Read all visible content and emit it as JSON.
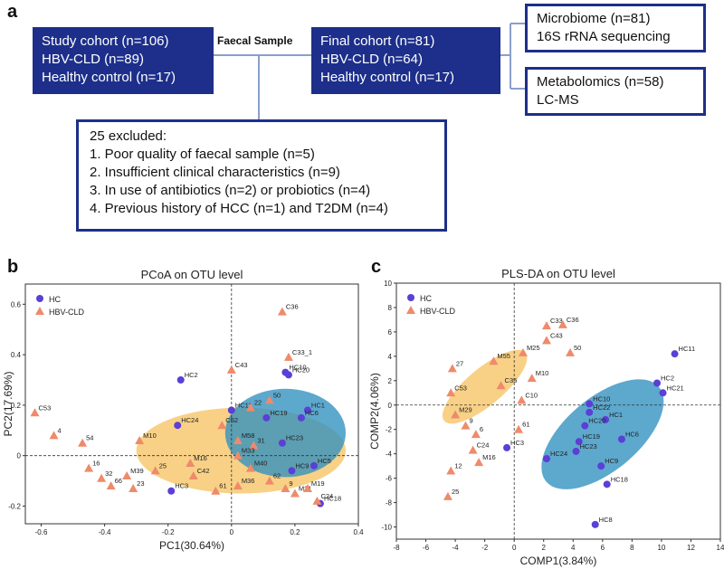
{
  "panels": {
    "a": "a",
    "b": "b",
    "c": "c"
  },
  "flow": {
    "study": {
      "line1": "Study cohort (n=106)",
      "line2": "HBV-CLD (n=89)",
      "line3": "Healthy control (n=17)"
    },
    "faecal_label": "Faecal Sample",
    "final": {
      "line1": "Final cohort  (n=81)",
      "line2": "HBV-CLD (n=64)",
      "line3": "Healthy control (n=17)"
    },
    "microbiome": {
      "line1": "Microbiome (n=81)",
      "line2": "16S rRNA sequencing"
    },
    "metabolomics": {
      "line1": "Metabolomics (n=58)",
      "line2": "LC-MS"
    },
    "excluded": {
      "title": "25 excluded:",
      "items": [
        "1. Poor quality of faecal sample (n=5)",
        "2. Insufficient clinical characteristics (n=9)",
        "3. In use of antibiotics (n=2) or probiotics (n=4)",
        "4. Previous history of HCC (n=1) and T2DM (n=4)"
      ]
    }
  },
  "colors": {
    "hc": "#5b3fd6",
    "hbv": "#ef8a6a",
    "hc_ellipse": "#2f8fbf",
    "hbv_ellipse": "#f5b945",
    "box": "#1d2f8a",
    "connector": "#8aa0cc"
  },
  "chart_data": [
    {
      "type": "scatter",
      "title": "PCoA on OTU level",
      "xlabel": "PC1(30.64%)",
      "ylabel": "PC2(17.69%)",
      "xlim": [
        -0.65,
        0.4
      ],
      "ylim": [
        -0.27,
        0.68
      ],
      "xticks": [
        -0.6,
        -0.4,
        -0.2,
        0,
        0.2,
        0.4
      ],
      "yticks": [
        -0.2,
        0,
        0.2,
        0.4,
        0.6
      ],
      "xtick_labels": [
        "-0.6",
        "-0.4",
        "-0.2",
        "0",
        "0.2",
        "0.4"
      ],
      "ytick_labels": [
        "-0.2",
        "0",
        "0.2",
        "0.4",
        "0.6"
      ],
      "legend": [
        "HC",
        "HBV-CLD"
      ],
      "ellipses": [
        {
          "group": "HBV-CLD",
          "cx": 0.03,
          "cy": 0.02,
          "rx": 0.33,
          "ry": 0.17,
          "angle": 0
        },
        {
          "group": "HC",
          "cx": 0.17,
          "cy": 0.09,
          "rx": 0.19,
          "ry": 0.175,
          "angle": 0
        }
      ],
      "series": [
        {
          "name": "HC",
          "points": [
            {
              "x": -0.16,
              "y": 0.3,
              "label": "HC2"
            },
            {
              "x": 0.17,
              "y": 0.33,
              "label": "HC10"
            },
            {
              "x": 0.18,
              "y": 0.32,
              "label": "HC20"
            },
            {
              "x": 0.0,
              "y": 0.18,
              "label": "HC11"
            },
            {
              "x": 0.24,
              "y": 0.18,
              "label": "HC1"
            },
            {
              "x": 0.22,
              "y": 0.15,
              "label": "HC6"
            },
            {
              "x": -0.17,
              "y": 0.12,
              "label": "HC24"
            },
            {
              "x": 0.11,
              "y": 0.15,
              "label": "HC19"
            },
            {
              "x": 0.16,
              "y": 0.05,
              "label": "HC23"
            },
            {
              "x": 0.26,
              "y": -0.04,
              "label": "HC5"
            },
            {
              "x": 0.19,
              "y": -0.06,
              "label": "HC9"
            },
            {
              "x": 0.28,
              "y": -0.19,
              "label": "HC18"
            },
            {
              "x": -0.19,
              "y": -0.14,
              "label": "HC3"
            }
          ]
        },
        {
          "name": "HBV-CLD",
          "points": [
            {
              "x": -0.62,
              "y": 0.17,
              "label": "C53"
            },
            {
              "x": -0.56,
              "y": 0.08,
              "label": "4"
            },
            {
              "x": -0.47,
              "y": 0.05,
              "label": "54"
            },
            {
              "x": -0.45,
              "y": -0.05,
              "label": "16"
            },
            {
              "x": -0.41,
              "y": -0.09,
              "label": "32"
            },
            {
              "x": -0.38,
              "y": -0.12,
              "label": "66"
            },
            {
              "x": -0.33,
              "y": -0.08,
              "label": "M39"
            },
            {
              "x": -0.31,
              "y": -0.13,
              "label": "23"
            },
            {
              "x": -0.29,
              "y": 0.06,
              "label": "M10"
            },
            {
              "x": -0.24,
              "y": -0.06,
              "label": "25"
            },
            {
              "x": -0.13,
              "y": -0.03,
              "label": "M16"
            },
            {
              "x": -0.12,
              "y": -0.08,
              "label": "C42"
            },
            {
              "x": -0.05,
              "y": -0.14,
              "label": "61"
            },
            {
              "x": 0.0,
              "y": 0.34,
              "label": "C43"
            },
            {
              "x": 0.16,
              "y": 0.57,
              "label": "C36"
            },
            {
              "x": 0.18,
              "y": 0.39,
              "label": "C33_1"
            },
            {
              "x": 0.12,
              "y": 0.22,
              "label": "50"
            },
            {
              "x": 0.06,
              "y": 0.19,
              "label": "22"
            },
            {
              "x": -0.03,
              "y": 0.12,
              "label": "C52"
            },
            {
              "x": 0.02,
              "y": 0.06,
              "label": "M58"
            },
            {
              "x": 0.07,
              "y": 0.04,
              "label": "31"
            },
            {
              "x": 0.02,
              "y": 0.0,
              "label": "M33"
            },
            {
              "x": 0.06,
              "y": -0.05,
              "label": "M40"
            },
            {
              "x": 0.12,
              "y": -0.1,
              "label": "62"
            },
            {
              "x": 0.02,
              "y": -0.12,
              "label": "M36"
            },
            {
              "x": 0.17,
              "y": -0.13,
              "label": "9"
            },
            {
              "x": 0.2,
              "y": -0.15,
              "label": "M21"
            },
            {
              "x": 0.24,
              "y": -0.13,
              "label": "M19"
            },
            {
              "x": 0.27,
              "y": -0.18,
              "label": "C24"
            }
          ]
        }
      ]
    },
    {
      "type": "scatter",
      "title": "PLS-DA on OTU level",
      "xlabel": "COMP1(3.84%)",
      "ylabel": "COMP2(4.06%)",
      "xlim": [
        -8,
        14
      ],
      "ylim": [
        -11,
        10
      ],
      "xticks": [
        -8,
        -6,
        -4,
        -2,
        0,
        2,
        4,
        6,
        8,
        10,
        12,
        14
      ],
      "yticks": [
        -10,
        -8,
        -6,
        -4,
        -2,
        0,
        2,
        4,
        6,
        8,
        10
      ],
      "xtick_labels": [
        "-8",
        "-6",
        "-4",
        "-2",
        "0",
        "2",
        "4",
        "6",
        "8",
        "10",
        "12",
        "14"
      ],
      "ytick_labels": [
        "-10",
        "-8",
        "-6",
        "-4",
        "-2",
        "0",
        "2",
        "4",
        "6",
        "8",
        "10"
      ],
      "legend": [
        "HC",
        "HBV-CLD"
      ],
      "ellipses": [
        {
          "group": "HBV-CLD",
          "cx": -2.0,
          "cy": 1.5,
          "rx": 3.6,
          "ry": 1.5,
          "angle": -40
        },
        {
          "group": "HC",
          "cx": 6.0,
          "cy": -2.4,
          "rx": 5.0,
          "ry": 3.0,
          "angle": -40
        }
      ],
      "series": [
        {
          "name": "HC",
          "points": [
            {
              "x": 10.9,
              "y": 4.2,
              "label": "HC11"
            },
            {
              "x": 9.7,
              "y": 1.8,
              "label": "HC2"
            },
            {
              "x": 10.1,
              "y": 1.0,
              "label": "HC21"
            },
            {
              "x": 5.1,
              "y": 0.1,
              "label": "HC10"
            },
            {
              "x": 5.1,
              "y": -0.6,
              "label": "HC22"
            },
            {
              "x": 6.2,
              "y": -1.2,
              "label": "HC1"
            },
            {
              "x": 4.8,
              "y": -1.7,
              "label": "HC20"
            },
            {
              "x": 7.3,
              "y": -2.8,
              "label": "HC6"
            },
            {
              "x": 4.4,
              "y": -3.0,
              "label": "HC19"
            },
            {
              "x": 4.2,
              "y": -3.8,
              "label": "HC23"
            },
            {
              "x": 2.2,
              "y": -4.4,
              "label": "HC24"
            },
            {
              "x": 5.9,
              "y": -5.0,
              "label": "HC9"
            },
            {
              "x": 6.3,
              "y": -6.5,
              "label": "HC18"
            },
            {
              "x": 5.5,
              "y": -9.8,
              "label": "HC8"
            },
            {
              "x": -0.5,
              "y": -3.5,
              "label": "HC3"
            }
          ]
        },
        {
          "name": "HBV-CLD",
          "points": [
            {
              "x": 2.2,
              "y": 6.5,
              "label": "C33"
            },
            {
              "x": 3.3,
              "y": 6.6,
              "label": "C36"
            },
            {
              "x": 2.2,
              "y": 5.3,
              "label": "C43"
            },
            {
              "x": 3.8,
              "y": 4.3,
              "label": "50"
            },
            {
              "x": 0.6,
              "y": 4.3,
              "label": "M25"
            },
            {
              "x": -1.4,
              "y": 3.6,
              "label": "M55"
            },
            {
              "x": -4.2,
              "y": 3.0,
              "label": "27"
            },
            {
              "x": 1.2,
              "y": 2.2,
              "label": "M10"
            },
            {
              "x": -0.9,
              "y": 1.6,
              "label": "C35"
            },
            {
              "x": 0.5,
              "y": 0.4,
              "label": "C10"
            },
            {
              "x": -4.3,
              "y": 1.0,
              "label": "C53"
            },
            {
              "x": -4.0,
              "y": -0.8,
              "label": "M29"
            },
            {
              "x": -3.3,
              "y": -1.7,
              "label": "9"
            },
            {
              "x": -2.6,
              "y": -2.4,
              "label": "6"
            },
            {
              "x": 0.3,
              "y": -2.0,
              "label": "61"
            },
            {
              "x": -2.8,
              "y": -3.7,
              "label": "C24"
            },
            {
              "x": -2.4,
              "y": -4.7,
              "label": "M16"
            },
            {
              "x": -4.3,
              "y": -5.4,
              "label": "12"
            },
            {
              "x": -4.5,
              "y": -7.5,
              "label": "25"
            }
          ]
        }
      ]
    }
  ]
}
